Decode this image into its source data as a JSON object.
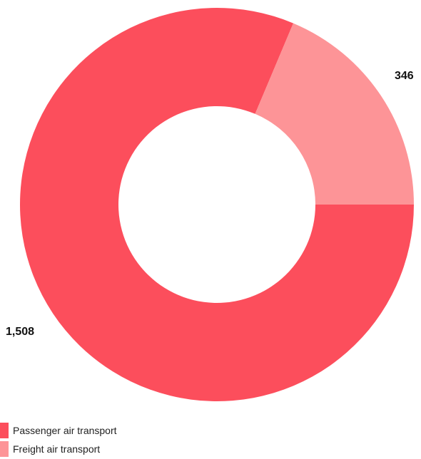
{
  "chart_data": {
    "type": "pie",
    "variant": "donut",
    "title": "",
    "categories": [
      "Passenger air transport",
      "Freight air transport"
    ],
    "values": [
      1508,
      346
    ],
    "data_labels": [
      "1,508",
      "346"
    ],
    "colors": [
      "#fc4e5c",
      "#fd9497"
    ],
    "legend_placement": "bottom-left"
  },
  "legend": {
    "items": [
      {
        "label": "Passenger air transport",
        "color": "#fc4e5c"
      },
      {
        "label": "Freight air transport",
        "color": "#fd9497"
      }
    ]
  }
}
